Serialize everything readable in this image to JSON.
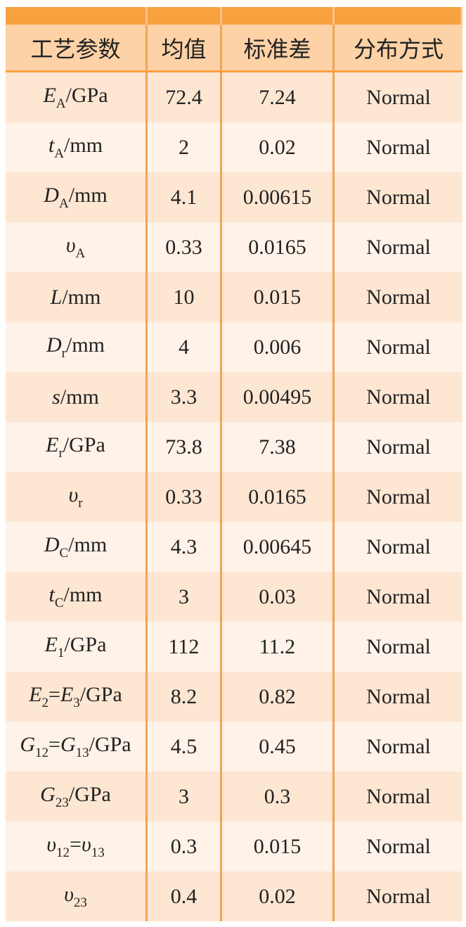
{
  "table": {
    "header": [
      "工艺参数",
      "均值",
      "标准差",
      "分布方式"
    ],
    "rows": [
      {
        "param": [
          {
            "text": "E",
            "italic": true
          },
          {
            "text": "A",
            "sub": true
          },
          {
            "text": "/GPa"
          }
        ],
        "mean": 72.4,
        "std": 7.24,
        "dist": "Normal"
      },
      {
        "param": [
          {
            "text": "t",
            "italic": true
          },
          {
            "text": "A",
            "sub": true
          },
          {
            "text": "/mm"
          }
        ],
        "mean": 2,
        "std": 0.02,
        "dist": "Normal"
      },
      {
        "param": [
          {
            "text": "D",
            "italic": true
          },
          {
            "text": "A",
            "sub": true
          },
          {
            "text": "/mm"
          }
        ],
        "mean": 4.1,
        "std": 0.00615,
        "dist": "Normal"
      },
      {
        "param": [
          {
            "text": "υ",
            "italic": true
          },
          {
            "text": "A",
            "sub": true
          }
        ],
        "mean": 0.33,
        "std": 0.0165,
        "dist": "Normal"
      },
      {
        "param": [
          {
            "text": "L",
            "italic": true
          },
          {
            "text": "/mm"
          }
        ],
        "mean": 10,
        "std": 0.015,
        "dist": "Normal"
      },
      {
        "param": [
          {
            "text": "D",
            "italic": true
          },
          {
            "text": "r",
            "sub": true
          },
          {
            "text": "/mm"
          }
        ],
        "mean": 4,
        "std": 0.006,
        "dist": "Normal"
      },
      {
        "param": [
          {
            "text": "s",
            "italic": true
          },
          {
            "text": "/mm"
          }
        ],
        "mean": 3.3,
        "std": 0.00495,
        "dist": "Normal"
      },
      {
        "param": [
          {
            "text": "E",
            "italic": true
          },
          {
            "text": "r",
            "sub": true
          },
          {
            "text": "/GPa"
          }
        ],
        "mean": 73.8,
        "std": 7.38,
        "dist": "Normal"
      },
      {
        "param": [
          {
            "text": "υ",
            "italic": true
          },
          {
            "text": "r",
            "sub": true
          }
        ],
        "mean": 0.33,
        "std": 0.0165,
        "dist": "Normal"
      },
      {
        "param": [
          {
            "text": "D",
            "italic": true
          },
          {
            "text": "C",
            "sub": true
          },
          {
            "text": "/mm"
          }
        ],
        "mean": 4.3,
        "std": 0.00645,
        "dist": "Normal"
      },
      {
        "param": [
          {
            "text": "t",
            "italic": true
          },
          {
            "text": "C",
            "sub": true
          },
          {
            "text": "/mm"
          }
        ],
        "mean": 3,
        "std": 0.03,
        "dist": "Normal"
      },
      {
        "param": [
          {
            "text": "E",
            "italic": true
          },
          {
            "text": "1",
            "sub": true
          },
          {
            "text": "/GPa"
          }
        ],
        "mean": 112,
        "std": 11.2,
        "dist": "Normal"
      },
      {
        "param": [
          {
            "text": "E",
            "italic": true
          },
          {
            "text": "2",
            "sub": true
          },
          {
            "text": "="
          },
          {
            "text": "E",
            "italic": true
          },
          {
            "text": "3",
            "sub": true
          },
          {
            "text": "/GPa"
          }
        ],
        "mean": 8.2,
        "std": 0.82,
        "dist": "Normal"
      },
      {
        "param": [
          {
            "text": "G",
            "italic": true
          },
          {
            "text": "12",
            "sub": true
          },
          {
            "text": "="
          },
          {
            "text": "G",
            "italic": true
          },
          {
            "text": "13",
            "sub": true
          },
          {
            "text": "/GPa"
          }
        ],
        "mean": 4.5,
        "std": 0.45,
        "dist": "Normal"
      },
      {
        "param": [
          {
            "text": "G",
            "italic": true
          },
          {
            "text": "23",
            "sub": true
          },
          {
            "text": "/GPa"
          }
        ],
        "mean": 3,
        "std": 0.3,
        "dist": "Normal"
      },
      {
        "param": [
          {
            "text": "υ",
            "italic": true
          },
          {
            "text": "12",
            "sub": true
          },
          {
            "text": "="
          },
          {
            "text": "υ",
            "italic": true
          },
          {
            "text": "13",
            "sub": true
          }
        ],
        "mean": 0.3,
        "std": 0.015,
        "dist": "Normal"
      },
      {
        "param": [
          {
            "text": "υ",
            "italic": true
          },
          {
            "text": "23",
            "sub": true
          }
        ],
        "mean": 0.4,
        "std": 0.02,
        "dist": "Normal"
      }
    ]
  }
}
